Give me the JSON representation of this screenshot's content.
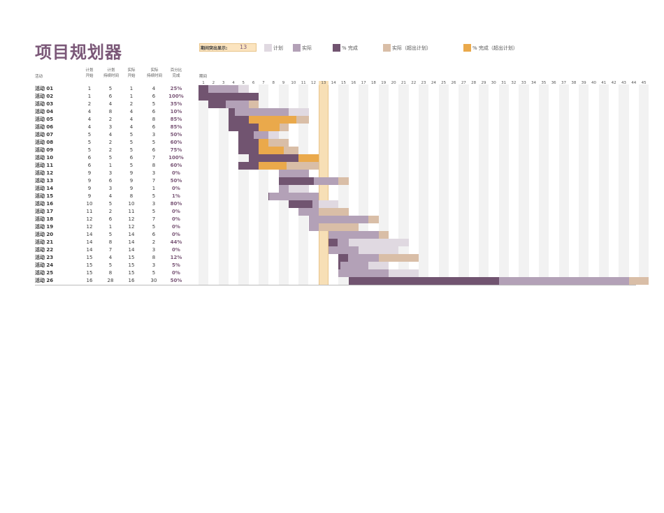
{
  "title": "项目规划器",
  "highlight": {
    "label": "期间突出显示:",
    "value": 13
  },
  "legend": [
    {
      "label": "计划",
      "color": "#e0d9e1"
    },
    {
      "label": "实际",
      "color": "#b3a1b7"
    },
    {
      "label": "% 完成",
      "color": "#715470"
    },
    {
      "label": "实际（超出计划）",
      "color": "#d9bea7"
    },
    {
      "label": "% 完成（超出计划）",
      "color": "#eaa94b"
    }
  ],
  "headers": {
    "activity": "活动",
    "plan_start": "计划\n开始",
    "plan_duration": "计划\n持续时间",
    "actual_start": "实际\n开始",
    "actual_duration": "实际\n持续时间",
    "percent": "百分比\n完成",
    "period": "期间"
  },
  "colors": {
    "plan": "#e0d9e1",
    "actual": "#b3a1b7",
    "complete": "#715470",
    "actual_over": "#d9bea7",
    "complete_over": "#eaa94b",
    "highlight_col": "#f7dfb6",
    "grid_a": "#f2f2f2",
    "grid_b": "#ffffff"
  },
  "period_count": 45,
  "activities": [
    {
      "name": "活动 01",
      "ps": 1,
      "pd": 5,
      "as": 1,
      "ad": 4,
      "pct": "25%"
    },
    {
      "name": "活动 02",
      "ps": 1,
      "pd": 6,
      "as": 1,
      "ad": 6,
      "pct": "100%"
    },
    {
      "name": "活动 03",
      "ps": 2,
      "pd": 4,
      "as": 2,
      "ad": 5,
      "pct": "35%"
    },
    {
      "name": "活动 04",
      "ps": 4,
      "pd": 8,
      "as": 4,
      "ad": 6,
      "pct": "10%"
    },
    {
      "name": "活动 05",
      "ps": 4,
      "pd": 2,
      "as": 4,
      "ad": 8,
      "pct": "85%"
    },
    {
      "name": "活动 06",
      "ps": 4,
      "pd": 3,
      "as": 4,
      "ad": 6,
      "pct": "85%"
    },
    {
      "name": "活动 07",
      "ps": 5,
      "pd": 4,
      "as": 5,
      "ad": 3,
      "pct": "50%"
    },
    {
      "name": "活动 08",
      "ps": 5,
      "pd": 2,
      "as": 5,
      "ad": 5,
      "pct": "60%"
    },
    {
      "name": "活动 09",
      "ps": 5,
      "pd": 2,
      "as": 5,
      "ad": 6,
      "pct": "75%"
    },
    {
      "name": "活动 10",
      "ps": 6,
      "pd": 5,
      "as": 6,
      "ad": 7,
      "pct": "100%"
    },
    {
      "name": "活动 11",
      "ps": 6,
      "pd": 1,
      "as": 5,
      "ad": 8,
      "pct": "60%"
    },
    {
      "name": "活动 12",
      "ps": 9,
      "pd": 3,
      "as": 9,
      "ad": 3,
      "pct": "0%"
    },
    {
      "name": "活动 13",
      "ps": 9,
      "pd": 6,
      "as": 9,
      "ad": 7,
      "pct": "50%"
    },
    {
      "name": "活动 14",
      "ps": 9,
      "pd": 3,
      "as": 9,
      "ad": 1,
      "pct": "0%"
    },
    {
      "name": "活动 15",
      "ps": 9,
      "pd": 4,
      "as": 8,
      "ad": 5,
      "pct": "1%"
    },
    {
      "name": "活动 16",
      "ps": 10,
      "pd": 5,
      "as": 10,
      "ad": 3,
      "pct": "80%"
    },
    {
      "name": "活动 17",
      "ps": 11,
      "pd": 2,
      "as": 11,
      "ad": 5,
      "pct": "0%"
    },
    {
      "name": "活动 18",
      "ps": 12,
      "pd": 6,
      "as": 12,
      "ad": 7,
      "pct": "0%"
    },
    {
      "name": "活动 19",
      "ps": 12,
      "pd": 1,
      "as": 12,
      "ad": 5,
      "pct": "0%"
    },
    {
      "name": "活动 20",
      "ps": 14,
      "pd": 5,
      "as": 14,
      "ad": 6,
      "pct": "0%"
    },
    {
      "name": "活动 21",
      "ps": 14,
      "pd": 8,
      "as": 14,
      "ad": 2,
      "pct": "44%"
    },
    {
      "name": "活动 22",
      "ps": 14,
      "pd": 7,
      "as": 14,
      "ad": 3,
      "pct": "0%"
    },
    {
      "name": "活动 23",
      "ps": 15,
      "pd": 4,
      "as": 15,
      "ad": 8,
      "pct": "12%"
    },
    {
      "name": "活动 24",
      "ps": 15,
      "pd": 5,
      "as": 15,
      "ad": 3,
      "pct": "5%"
    },
    {
      "name": "活动 25",
      "ps": 15,
      "pd": 8,
      "as": 15,
      "ad": 5,
      "pct": "0%"
    },
    {
      "name": "活动 26",
      "ps": 16,
      "pd": 28,
      "as": 16,
      "ad": 30,
      "pct": "50%"
    }
  ]
}
